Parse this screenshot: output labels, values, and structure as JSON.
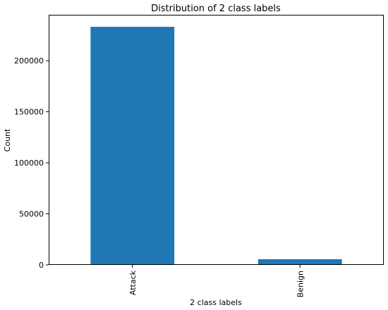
{
  "chart_data": {
    "type": "bar",
    "title": "Distribution of 2 class labels",
    "xlabel": "2 class labels",
    "ylabel": "Count",
    "categories": [
      "Attack",
      "Benign"
    ],
    "values": [
      233200,
      5600
    ],
    "ylim": [
      0,
      245000
    ],
    "yticks": [
      0,
      50000,
      100000,
      150000,
      200000
    ],
    "ytick_labels": [
      "0",
      "50000",
      "100000",
      "150000",
      "200000"
    ],
    "bar_color": "#1f77b4",
    "grid": false,
    "legend": "none"
  }
}
